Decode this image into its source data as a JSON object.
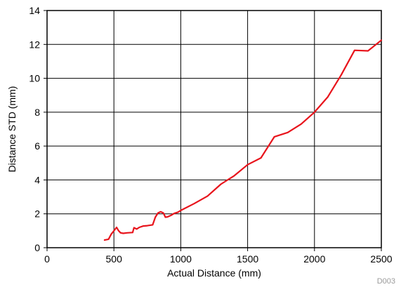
{
  "chart_data": {
    "type": "line",
    "title": "",
    "xlabel": "Actual Distance (mm)",
    "ylabel": "Distance STD (mm)",
    "xlim": [
      0,
      2500
    ],
    "ylim": [
      0,
      14
    ],
    "xticks": [
      0,
      500,
      1000,
      1500,
      2000,
      2500
    ],
    "yticks": [
      0,
      2,
      4,
      6,
      8,
      10,
      12,
      14
    ],
    "grid": true,
    "line_color": "#e8141c",
    "series": [
      {
        "x": [
          430,
          460,
          480,
          500,
          520,
          535,
          550,
          570,
          600,
          640,
          650,
          670,
          690,
          720,
          750,
          790,
          810,
          830,
          850,
          870,
          885,
          900,
          930,
          950,
          980,
          1000,
          1100,
          1200,
          1300,
          1400,
          1500,
          1600,
          1700,
          1800,
          1900,
          2000,
          2100,
          2200,
          2300,
          2400,
          2500
        ],
        "y": [
          0.45,
          0.5,
          0.8,
          1.0,
          1.2,
          1.0,
          0.88,
          0.85,
          0.88,
          0.9,
          1.18,
          1.1,
          1.2,
          1.28,
          1.3,
          1.35,
          1.8,
          2.05,
          2.12,
          2.05,
          1.8,
          1.82,
          1.92,
          2.02,
          2.1,
          2.2,
          2.6,
          3.05,
          3.75,
          4.25,
          4.9,
          5.3,
          6.55,
          6.8,
          7.3,
          8.0,
          8.9,
          10.2,
          11.65,
          11.62,
          12.25
        ]
      }
    ]
  },
  "figure_id": "D003"
}
